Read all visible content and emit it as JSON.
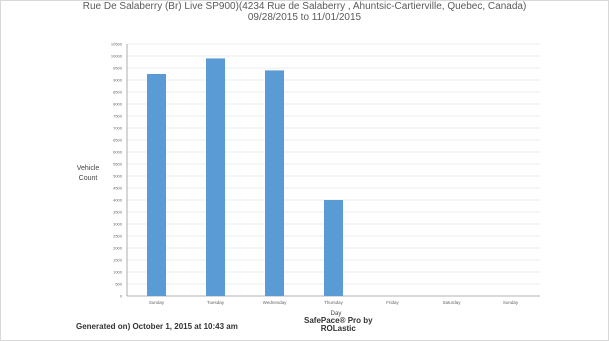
{
  "report": {
    "title": "Rue De Salaberry (Br) Live SP900)(4234 Rue de Salaberry , Ahuntsic-Cartierville, Quebec, Canada)",
    "date_range": "09/28/2015 to 11/01/2015"
  },
  "footer": {
    "generated": "Generated on) October 1, 2015 at 10:43 am",
    "brand_line1": "SafePace® Pro by",
    "brand_line2": "ROLastic"
  },
  "colors": {
    "bar": "#5b9bd5",
    "grid": "#e6e6e6",
    "axis": "#9a9a9a"
  },
  "chart_data": {
    "type": "bar",
    "title": "",
    "xlabel": "Day",
    "ylabel": "Vehicle Count",
    "categories": [
      "Sunday",
      "Tuesday",
      "Wednesday",
      "Thursday",
      "Friday",
      "Saturday",
      "Sunday"
    ],
    "values": [
      9250,
      9900,
      9400,
      4000,
      0,
      0,
      0
    ],
    "ylim": [
      0,
      10500
    ],
    "yticks": [
      0,
      500,
      1000,
      1500,
      2000,
      2500,
      3000,
      3500,
      4000,
      4500,
      5000,
      5500,
      6000,
      6500,
      7000,
      7500,
      8000,
      8500,
      9000,
      9500,
      10000,
      10500
    ],
    "grid": true,
    "legend": "none"
  }
}
